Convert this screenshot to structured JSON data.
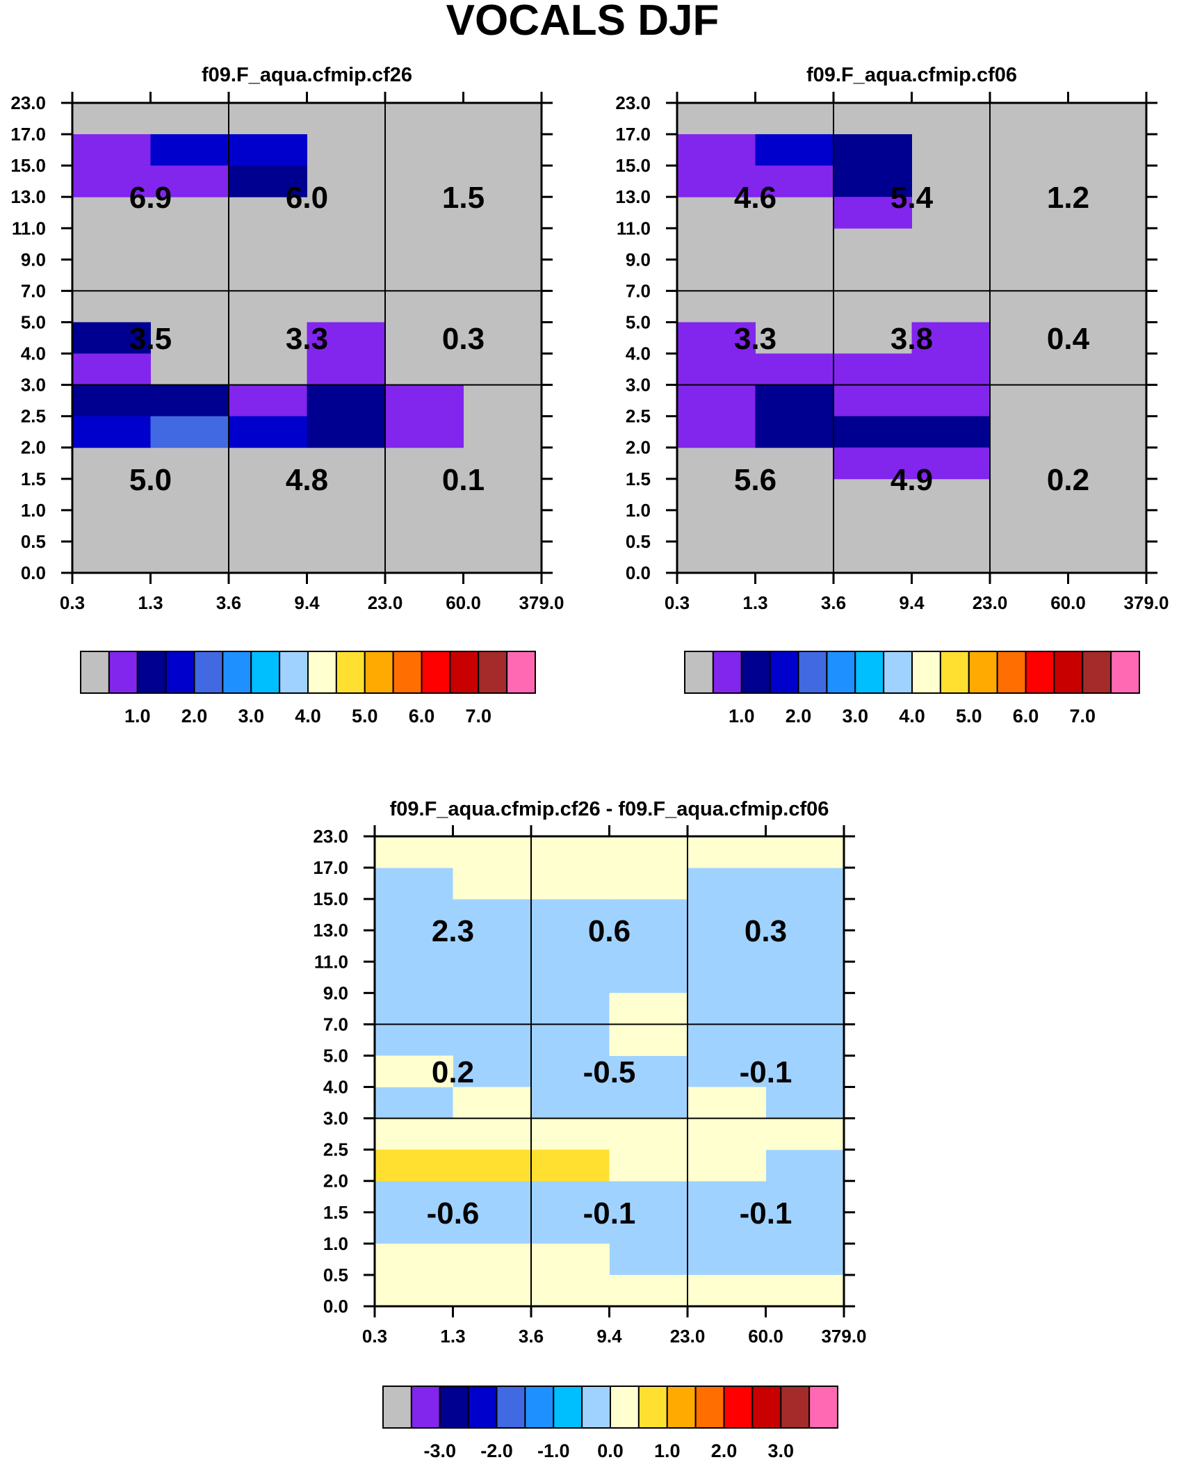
{
  "title": "VOCALS DJF",
  "chart_data": [
    {
      "type": "heatmap",
      "title": "f09.F_aqua.cfmip.cf26",
      "xlabel": "",
      "ylabel": "",
      "x_ticks": [
        "0.3",
        "1.3",
        "3.6",
        "9.4",
        "23.0",
        "60.0",
        "379.0"
      ],
      "y_ticks": [
        "0.0",
        "0.5",
        "1.0",
        "1.5",
        "2.0",
        "2.5",
        "3.0",
        "4.0",
        "5.0",
        "7.0",
        "9.0",
        "11.0",
        "13.0",
        "15.0",
        "17.0",
        "23.0"
      ],
      "cells": [
        {
          "row": 1,
          "col": 0,
          "c": 1
        },
        {
          "row": 1,
          "col": 1,
          "c": 3
        },
        {
          "row": 1,
          "col": 2,
          "c": 3
        },
        {
          "row": 2,
          "col": 0,
          "c": 1
        },
        {
          "row": 2,
          "col": 1,
          "c": 1
        },
        {
          "row": 2,
          "col": 2,
          "c": 2
        },
        {
          "row": 7,
          "col": 0,
          "c": 2
        },
        {
          "row": 7,
          "col": 3,
          "c": 1
        },
        {
          "row": 8,
          "col": 0,
          "c": 1
        },
        {
          "row": 8,
          "col": 3,
          "c": 1
        },
        {
          "row": 9,
          "col": 0,
          "c": 2
        },
        {
          "row": 9,
          "col": 1,
          "c": 2
        },
        {
          "row": 9,
          "col": 2,
          "c": 1
        },
        {
          "row": 9,
          "col": 3,
          "c": 2
        },
        {
          "row": 9,
          "col": 4,
          "c": 1
        },
        {
          "row": 10,
          "col": 0,
          "c": 3
        },
        {
          "row": 10,
          "col": 1,
          "c": 4
        },
        {
          "row": 10,
          "col": 2,
          "c": 3
        },
        {
          "row": 10,
          "col": 3,
          "c": 2
        },
        {
          "row": 10,
          "col": 4,
          "c": 1
        }
      ],
      "box_values": [
        [
          "5.0",
          "4.8",
          "0.1"
        ],
        [
          "3.5",
          "3.3",
          "0.3"
        ],
        [
          "6.9",
          "6.0",
          "1.5"
        ]
      ],
      "colorbar": {
        "colors": [
          "#c0c0c0",
          "#8225ed",
          "#000090",
          "#0000cd",
          "#4169e1",
          "#1e90ff",
          "#00bfff",
          "#a0d2ff",
          "#ffffd0",
          "#ffe030",
          "#ffaa00",
          "#ff6e00",
          "#ff0000",
          "#c80000",
          "#a52a2a",
          "#ff69b4"
        ],
        "labels": [
          "1.0",
          "2.0",
          "3.0",
          "4.0",
          "5.0",
          "6.0",
          "7.0"
        ]
      }
    },
    {
      "type": "heatmap",
      "title": "f09.F_aqua.cfmip.cf06",
      "xlabel": "",
      "ylabel": "",
      "x_ticks": [
        "0.3",
        "1.3",
        "3.6",
        "9.4",
        "23.0",
        "60.0",
        "379.0"
      ],
      "y_ticks": [
        "0.0",
        "0.5",
        "1.0",
        "1.5",
        "2.0",
        "2.5",
        "3.0",
        "4.0",
        "5.0",
        "7.0",
        "9.0",
        "11.0",
        "13.0",
        "15.0",
        "17.0",
        "23.0"
      ],
      "cells": [
        {
          "row": 1,
          "col": 0,
          "c": 1
        },
        {
          "row": 1,
          "col": 1,
          "c": 3
        },
        {
          "row": 1,
          "col": 2,
          "c": 2
        },
        {
          "row": 2,
          "col": 0,
          "c": 1
        },
        {
          "row": 2,
          "col": 1,
          "c": 1
        },
        {
          "row": 2,
          "col": 2,
          "c": 2
        },
        {
          "row": 3,
          "col": 2,
          "c": 1
        },
        {
          "row": 7,
          "col": 0,
          "c": 1
        },
        {
          "row": 7,
          "col": 3,
          "c": 1
        },
        {
          "row": 8,
          "col": 0,
          "c": 1
        },
        {
          "row": 8,
          "col": 1,
          "c": 1
        },
        {
          "row": 8,
          "col": 2,
          "c": 1
        },
        {
          "row": 8,
          "col": 3,
          "c": 1
        },
        {
          "row": 9,
          "col": 0,
          "c": 1
        },
        {
          "row": 9,
          "col": 1,
          "c": 2
        },
        {
          "row": 9,
          "col": 2,
          "c": 1
        },
        {
          "row": 9,
          "col": 3,
          "c": 1
        },
        {
          "row": 10,
          "col": 0,
          "c": 1
        },
        {
          "row": 10,
          "col": 1,
          "c": 2
        },
        {
          "row": 10,
          "col": 2,
          "c": 2
        },
        {
          "row": 10,
          "col": 3,
          "c": 2
        },
        {
          "row": 11,
          "col": 2,
          "c": 1
        },
        {
          "row": 11,
          "col": 3,
          "c": 1
        }
      ],
      "box_values": [
        [
          "5.6",
          "4.9",
          "0.2"
        ],
        [
          "3.3",
          "3.8",
          "0.4"
        ],
        [
          "4.6",
          "5.4",
          "1.2"
        ]
      ],
      "colorbar": {
        "colors": [
          "#c0c0c0",
          "#8225ed",
          "#000090",
          "#0000cd",
          "#4169e1",
          "#1e90ff",
          "#00bfff",
          "#a0d2ff",
          "#ffffd0",
          "#ffe030",
          "#ffaa00",
          "#ff6e00",
          "#ff0000",
          "#c80000",
          "#a52a2a",
          "#ff69b4"
        ],
        "labels": [
          "1.0",
          "2.0",
          "3.0",
          "4.0",
          "5.0",
          "6.0",
          "7.0"
        ]
      }
    },
    {
      "type": "heatmap",
      "title": "f09.F_aqua.cfmip.cf26 - f09.F_aqua.cfmip.cf06",
      "xlabel": "",
      "ylabel": "",
      "x_ticks": [
        "0.3",
        "1.3",
        "3.6",
        "9.4",
        "23.0",
        "60.0",
        "379.0"
      ],
      "y_ticks": [
        "0.0",
        "0.5",
        "1.0",
        "1.5",
        "2.0",
        "2.5",
        "3.0",
        "4.0",
        "5.0",
        "7.0",
        "9.0",
        "11.0",
        "13.0",
        "15.0",
        "17.0",
        "23.0"
      ],
      "default_color": 7,
      "cells": [
        {
          "row": 0,
          "col": 0,
          "c": 8
        },
        {
          "row": 0,
          "col": 1,
          "c": 8
        },
        {
          "row": 0,
          "col": 2,
          "c": 8
        },
        {
          "row": 0,
          "col": 3,
          "c": 8
        },
        {
          "row": 0,
          "col": 4,
          "c": 8
        },
        {
          "row": 0,
          "col": 5,
          "c": 8
        },
        {
          "row": 1,
          "col": 1,
          "c": 8
        },
        {
          "row": 1,
          "col": 2,
          "c": 8
        },
        {
          "row": 1,
          "col": 3,
          "c": 8
        },
        {
          "row": 5,
          "col": 3,
          "c": 8
        },
        {
          "row": 6,
          "col": 3,
          "c": 8
        },
        {
          "row": 7,
          "col": 0,
          "c": 8
        },
        {
          "row": 8,
          "col": 1,
          "c": 8
        },
        {
          "row": 8,
          "col": 4,
          "c": 8
        },
        {
          "row": 9,
          "col": 0,
          "c": 8
        },
        {
          "row": 9,
          "col": 1,
          "c": 8
        },
        {
          "row": 9,
          "col": 2,
          "c": 8
        },
        {
          "row": 9,
          "col": 3,
          "c": 8
        },
        {
          "row": 9,
          "col": 4,
          "c": 8
        },
        {
          "row": 9,
          "col": 5,
          "c": 8
        },
        {
          "row": 10,
          "col": 0,
          "c": 9
        },
        {
          "row": 10,
          "col": 1,
          "c": 9
        },
        {
          "row": 10,
          "col": 2,
          "c": 9
        },
        {
          "row": 10,
          "col": 3,
          "c": 8
        },
        {
          "row": 10,
          "col": 4,
          "c": 8
        },
        {
          "row": 13,
          "col": 0,
          "c": 8
        },
        {
          "row": 13,
          "col": 1,
          "c": 8
        },
        {
          "row": 13,
          "col": 2,
          "c": 8
        },
        {
          "row": 14,
          "col": 0,
          "c": 8
        },
        {
          "row": 14,
          "col": 1,
          "c": 8
        },
        {
          "row": 14,
          "col": 2,
          "c": 8
        },
        {
          "row": 14,
          "col": 3,
          "c": 8
        },
        {
          "row": 14,
          "col": 4,
          "c": 8
        },
        {
          "row": 14,
          "col": 5,
          "c": 8
        }
      ],
      "box_values": [
        [
          "-0.6",
          "-0.1",
          "-0.1"
        ],
        [
          "0.2",
          "-0.5",
          "-0.1"
        ],
        [
          "2.3",
          "0.6",
          "0.3"
        ]
      ],
      "colorbar": {
        "colors": [
          "#c0c0c0",
          "#8225ed",
          "#000090",
          "#0000cd",
          "#4169e1",
          "#1e90ff",
          "#00bfff",
          "#a0d2ff",
          "#ffffd0",
          "#ffe030",
          "#ffaa00",
          "#ff6e00",
          "#ff0000",
          "#c80000",
          "#a52a2a",
          "#ff69b4"
        ],
        "labels": [
          "-3.0",
          "-2.0",
          "-1.0",
          "0.0",
          "1.0",
          "2.0",
          "3.0"
        ]
      }
    }
  ]
}
